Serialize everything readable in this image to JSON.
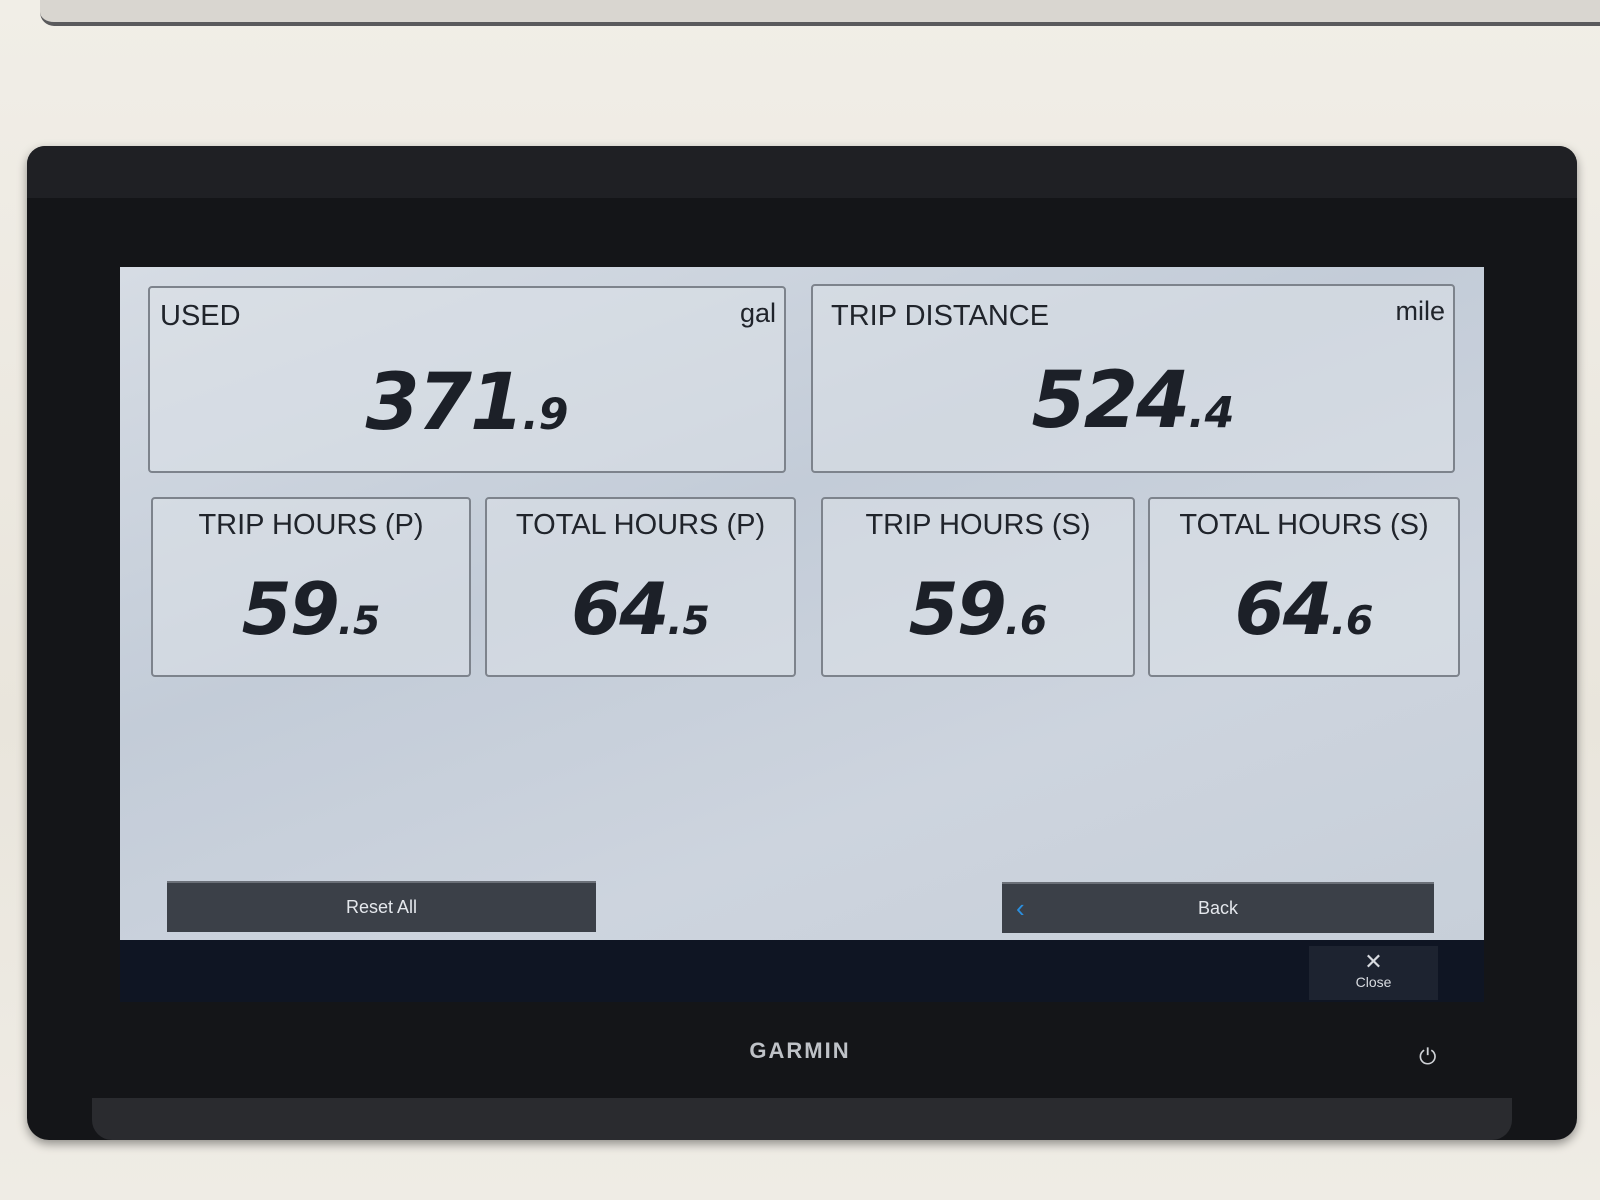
{
  "device": {
    "brand": "GARMIN",
    "power_icon": "power-icon"
  },
  "gauges_large": [
    {
      "label": "USED",
      "unit": "gal",
      "value_int": "371",
      "value_dec": ".9"
    },
    {
      "label": "TRIP DISTANCE",
      "unit": "mile",
      "value_int": "524",
      "value_dec": ".4"
    }
  ],
  "gauges_small": [
    {
      "label": "TRIP HOURS (P)",
      "value_int": "59",
      "value_dec": ".5"
    },
    {
      "label": "TOTAL HOURS (P)",
      "value_int": "64",
      "value_dec": ".5"
    },
    {
      "label": "TRIP HOURS (S)",
      "value_int": "59",
      "value_dec": ".6"
    },
    {
      "label": "TOTAL HOURS (S)",
      "value_int": "64",
      "value_dec": ".6"
    }
  ],
  "buttons": {
    "reset_all": "Reset All",
    "back": "Back",
    "close": "Close"
  },
  "colors": {
    "accent": "#2a8fe0",
    "button_bg": "#3b4048"
  }
}
